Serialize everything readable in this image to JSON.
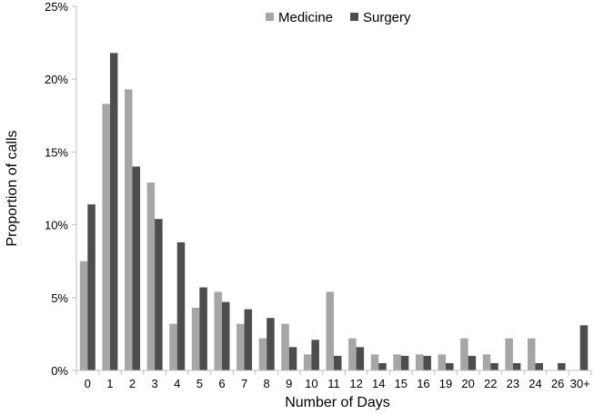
{
  "chart_data": {
    "type": "bar",
    "categories": [
      "0",
      "1",
      "2",
      "3",
      "4",
      "5",
      "6",
      "7",
      "8",
      "9",
      "10",
      "11",
      "12",
      "14",
      "15",
      "16",
      "19",
      "20",
      "22",
      "23",
      "24",
      "26",
      "30+"
    ],
    "series": [
      {
        "name": "Medicine",
        "color": "#a6a6a6",
        "values": [
          7.5,
          18.3,
          19.3,
          12.9,
          3.2,
          4.3,
          5.4,
          3.2,
          2.2,
          3.2,
          1.1,
          5.4,
          2.2,
          1.1,
          1.1,
          1.1,
          1.1,
          2.2,
          1.1,
          2.2,
          2.2,
          0,
          0
        ]
      },
      {
        "name": "Surgery",
        "color": "#4d4d4d",
        "values": [
          11.4,
          21.8,
          14.0,
          10.4,
          8.8,
          5.7,
          4.7,
          4.2,
          3.6,
          1.6,
          2.1,
          1.0,
          1.6,
          0.5,
          1.0,
          1.0,
          0.5,
          1.0,
          0.5,
          0.5,
          0.5,
          0.5,
          3.1
        ]
      }
    ],
    "xlabel": "Number of Days",
    "ylabel": "Proportion of calls",
    "ylim": [
      0,
      25
    ],
    "yticks": [
      "0%",
      "5%",
      "10%",
      "15%",
      "20%",
      "25%"
    ],
    "grid": false,
    "legend_position": "top-center"
  }
}
